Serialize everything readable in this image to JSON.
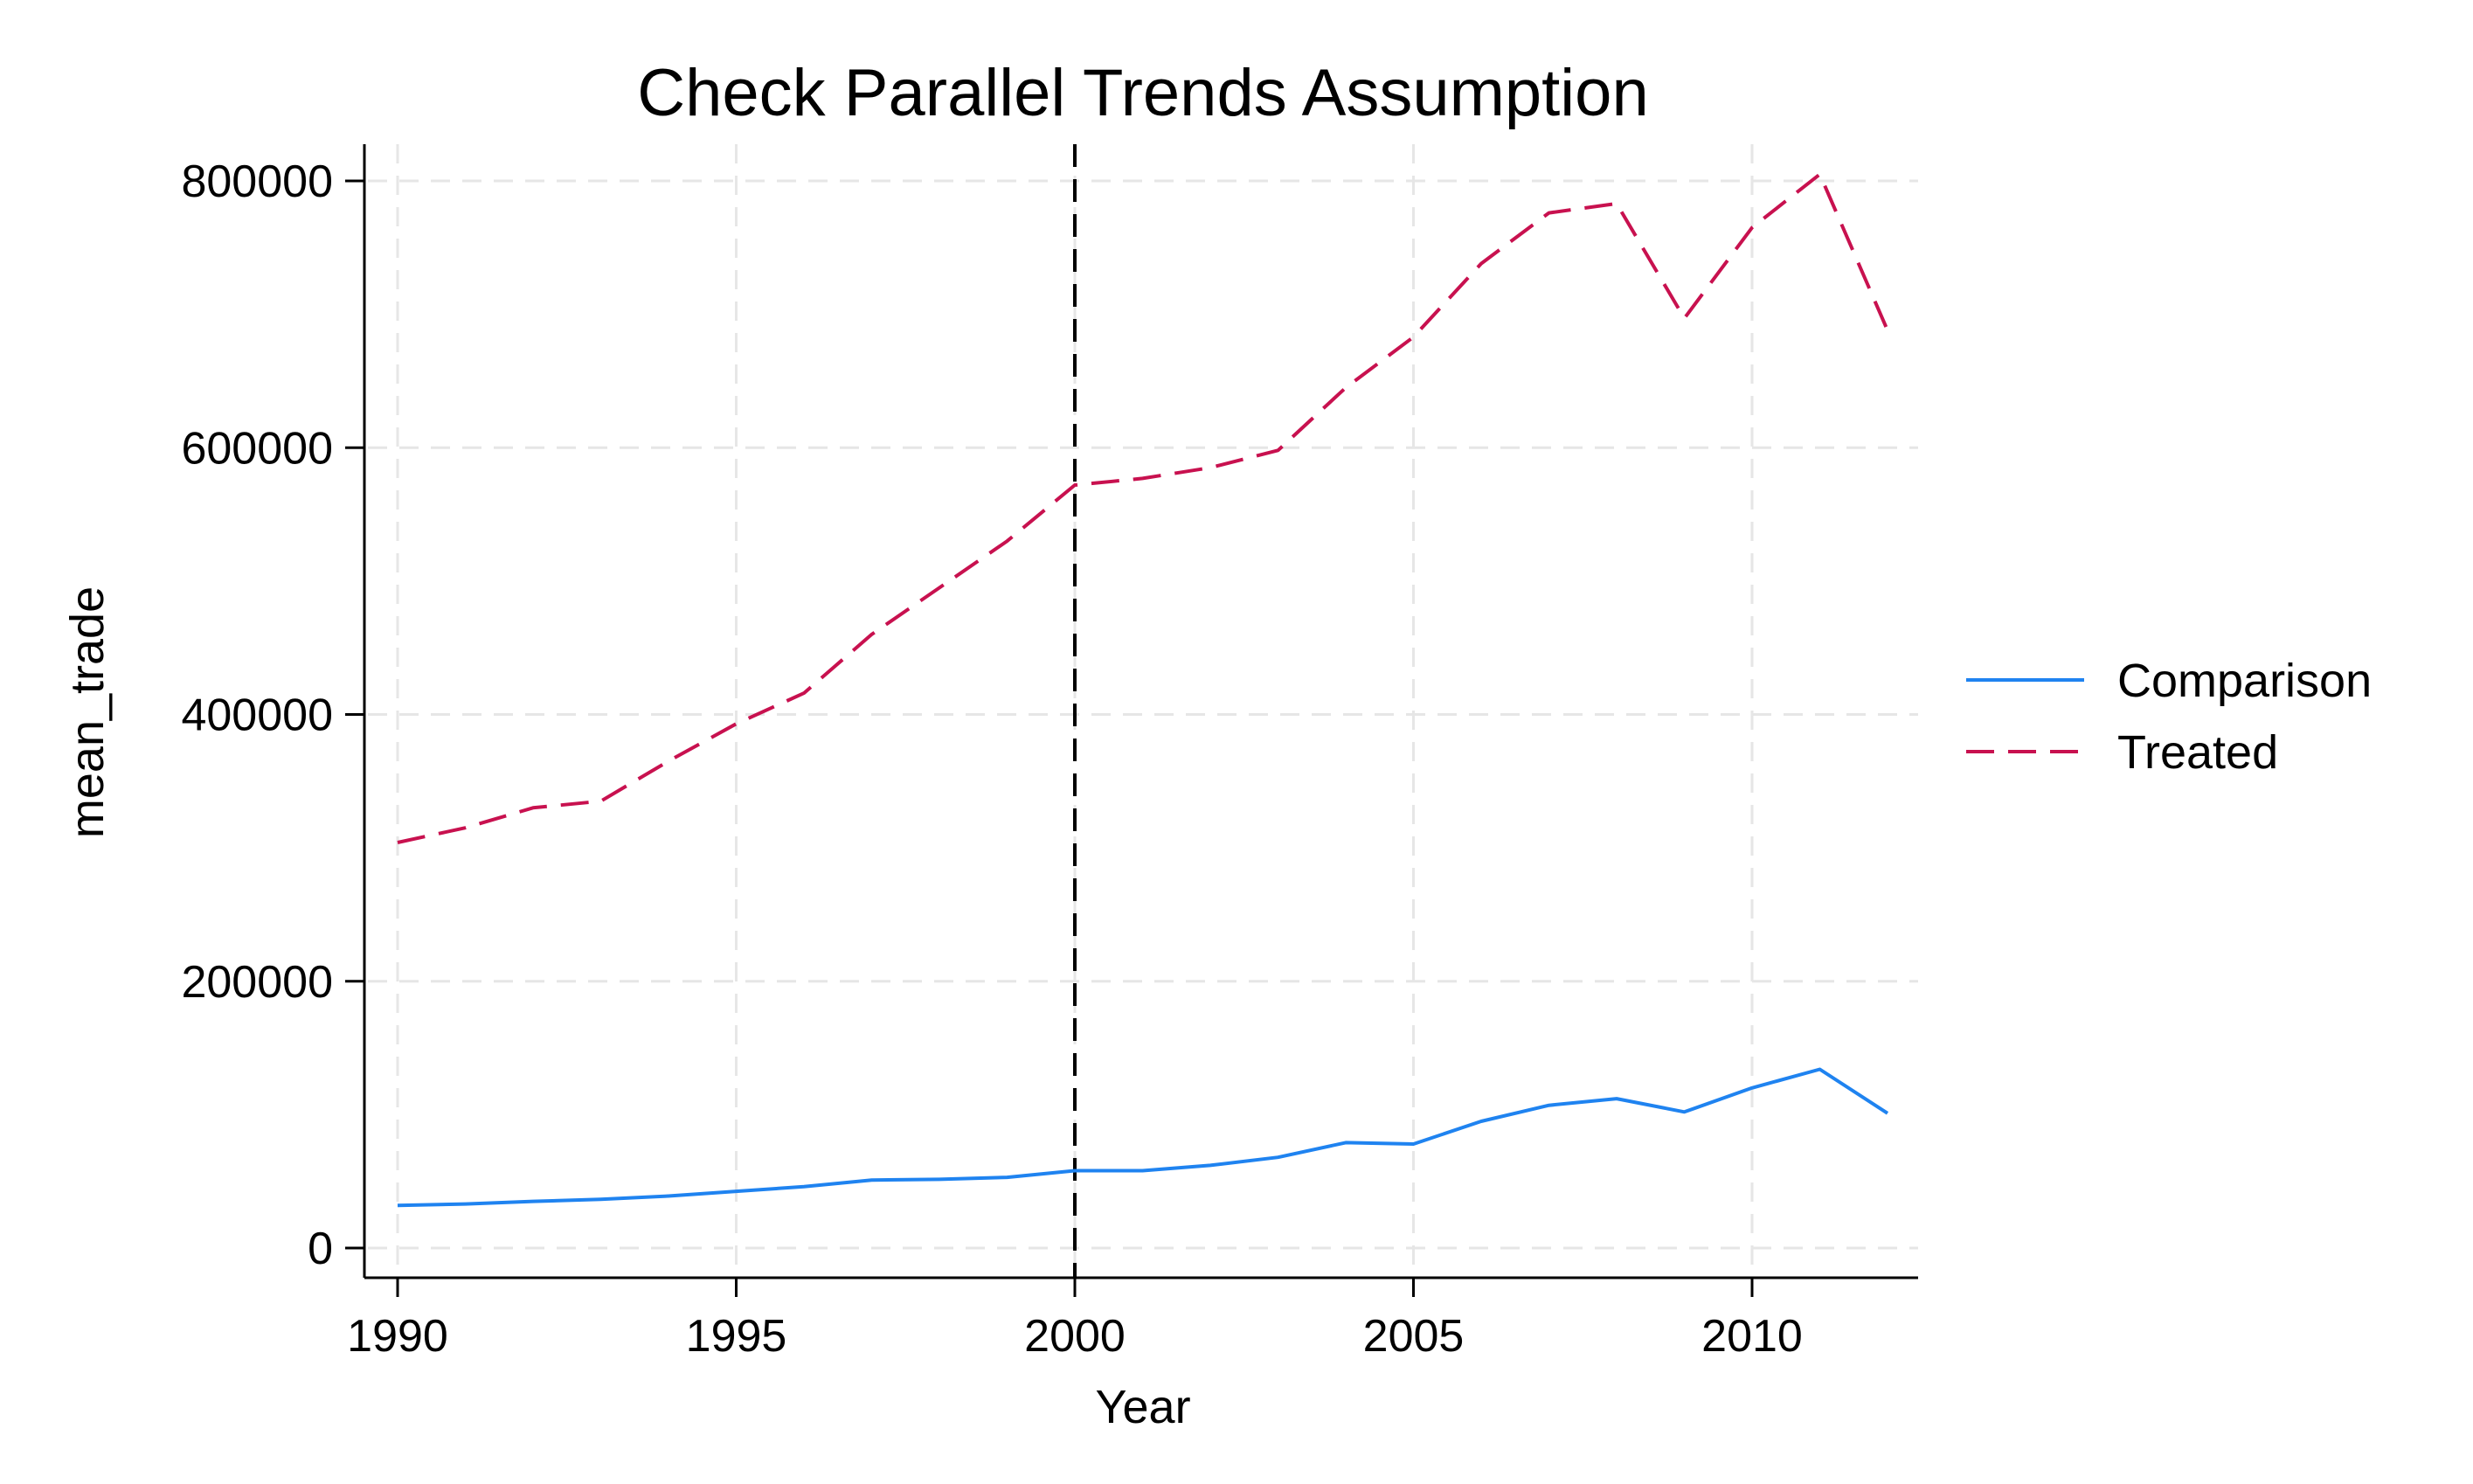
{
  "chart_data": {
    "type": "line",
    "title": "Check Parallel Trends Assumption",
    "xlabel": "Year",
    "ylabel": "mean_trade",
    "xlim": [
      1990,
      2012
    ],
    "ylim": [
      0,
      800000
    ],
    "xticks": [
      1990,
      1995,
      2000,
      2005,
      2010
    ],
    "yticks": [
      0,
      200000,
      400000,
      600000,
      800000
    ],
    "x_tick_labels": [
      "1990",
      "1995",
      "2000",
      "2005",
      "2010"
    ],
    "y_tick_labels": [
      "0",
      "200000",
      "400000",
      "600000",
      "800000"
    ],
    "grid": true,
    "legend_position": "right",
    "reference_line": {
      "x": 2000,
      "style": "dashed",
      "color": "#000000"
    },
    "x": [
      1990,
      1991,
      1992,
      1993,
      1994,
      1995,
      1996,
      1997,
      1998,
      1999,
      2000,
      2001,
      2002,
      2003,
      2004,
      2005,
      2006,
      2007,
      2008,
      2009,
      2010,
      2011,
      2012
    ],
    "series": [
      {
        "name": "Comparison",
        "color": "#1f83f0",
        "style": "solid",
        "values": [
          32000,
          33000,
          35000,
          36500,
          39000,
          42500,
          46000,
          51000,
          51500,
          53000,
          58000,
          58000,
          62000,
          68000,
          79000,
          78000,
          95000,
          107000,
          112000,
          102000,
          120000,
          134000,
          101000
        ]
      },
      {
        "name": "Treated",
        "color": "#c8114f",
        "style": "dashed",
        "values": [
          304000,
          315000,
          330000,
          335000,
          365000,
          393000,
          416000,
          460000,
          495000,
          530000,
          572000,
          577000,
          585000,
          598000,
          645000,
          683000,
          738000,
          776000,
          783000,
          697000,
          765000,
          805000,
          688000
        ]
      }
    ]
  }
}
